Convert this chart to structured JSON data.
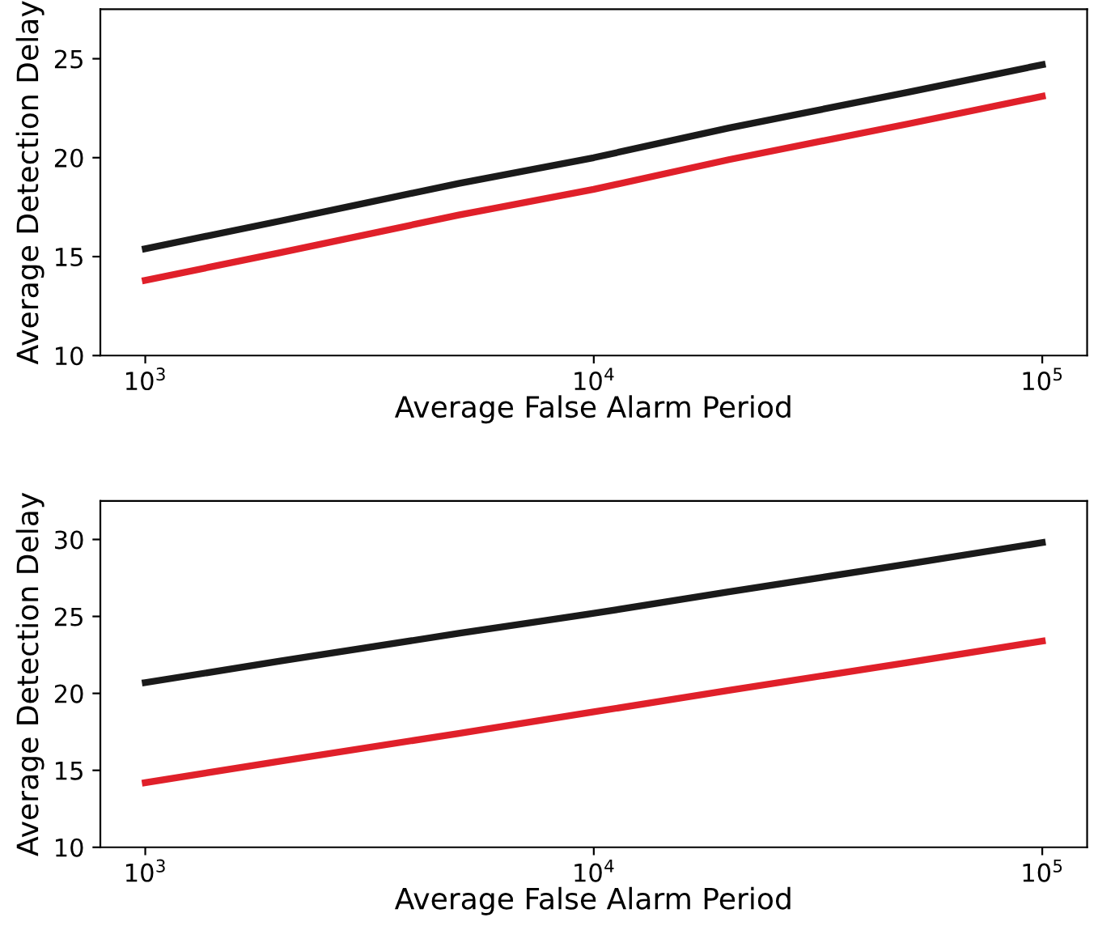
{
  "chart_data": [
    {
      "type": "line",
      "xlabel": "Average False Alarm Period",
      "ylabel": "Average Detection Delay",
      "log": "x",
      "xlim": [
        794,
        125893
      ],
      "ylim": [
        10,
        27.5
      ],
      "xticks": [
        {
          "value": 1000,
          "label": "10$^{3}$"
        },
        {
          "value": 10000,
          "label": "10$^{4}$"
        },
        {
          "value": 100000,
          "label": "10$^{5}$"
        }
      ],
      "yticks": [
        10,
        15,
        20,
        25
      ],
      "x": [
        1000,
        2000,
        5000,
        10000,
        20000,
        50000,
        100000
      ],
      "series": [
        {
          "color": "#1a1a1a",
          "values": [
            15.4,
            16.8,
            18.7,
            20.0,
            21.5,
            23.3,
            24.7
          ]
        },
        {
          "color": "#e0202a",
          "values": [
            13.8,
            15.2,
            17.1,
            18.4,
            19.9,
            21.7,
            23.1
          ]
        }
      ]
    },
    {
      "type": "line",
      "xlabel": "Average False Alarm Period",
      "ylabel": "Average Detection Delay",
      "log": "x",
      "xlim": [
        794,
        125893
      ],
      "ylim": [
        10,
        32.5
      ],
      "xticks": [
        {
          "value": 1000,
          "label": "10$^{3}$"
        },
        {
          "value": 10000,
          "label": "10$^{4}$"
        },
        {
          "value": 100000,
          "label": "10$^{5}$"
        }
      ],
      "yticks": [
        10,
        15,
        20,
        25,
        30
      ],
      "x": [
        1000,
        2000,
        5000,
        10000,
        20000,
        50000,
        100000
      ],
      "series": [
        {
          "color": "#1a1a1a",
          "values": [
            20.7,
            22.1,
            23.9,
            25.2,
            26.6,
            28.4,
            29.8
          ]
        },
        {
          "color": "#e0202a",
          "values": [
            14.2,
            15.6,
            17.4,
            18.8,
            20.2,
            22.0,
            23.4
          ]
        }
      ]
    }
  ]
}
